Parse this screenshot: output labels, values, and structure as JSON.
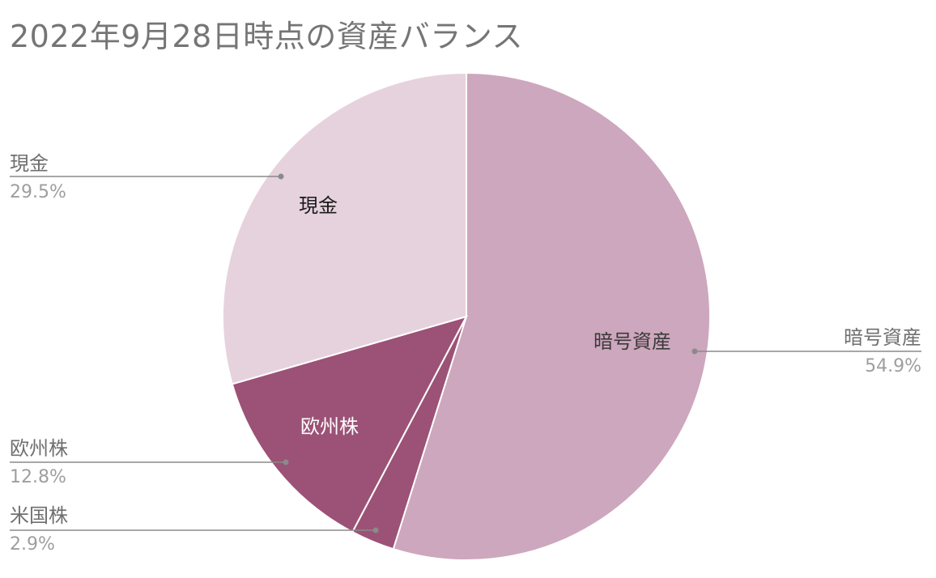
{
  "chart_data": {
    "type": "pie",
    "title": "2022年9月28日時点の資産バランス",
    "slices": [
      {
        "label": "暗号資産",
        "value": 54.9,
        "percent_label": "54.9%",
        "color": "#cda7bd",
        "inner_label_color": "#3a3a3a",
        "show_inner": true
      },
      {
        "label": "米国株",
        "value": 2.9,
        "percent_label": "2.9%",
        "color": "#9b5276",
        "inner_label_color": "#ffffff",
        "show_inner": false
      },
      {
        "label": "欧州株",
        "value": 12.8,
        "percent_label": "12.8%",
        "color": "#9b5276",
        "inner_label_color": "#ffffff",
        "show_inner": true
      },
      {
        "label": "現金",
        "value": 29.5,
        "percent_label": "29.5%",
        "color": "#e6d2dd",
        "inner_label_color": "#1a1a1a",
        "show_inner": true
      }
    ],
    "start_angle_deg": 0,
    "direction": "clockwise",
    "legend": "none"
  }
}
